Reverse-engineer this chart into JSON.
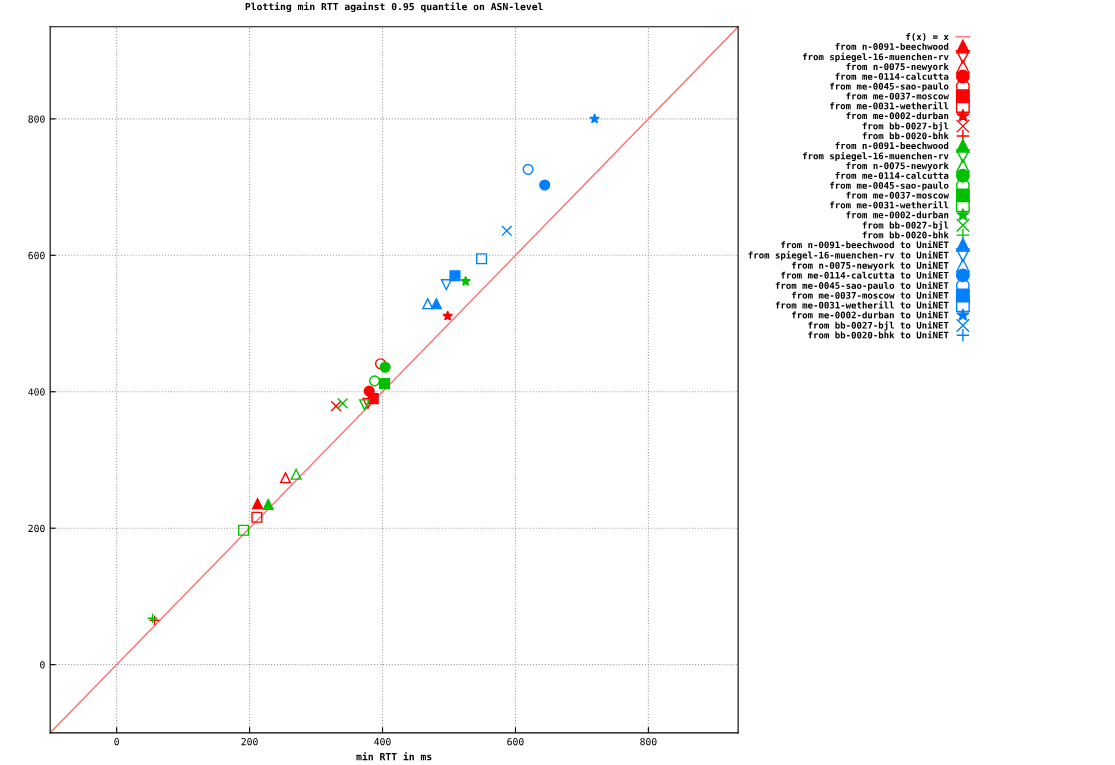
{
  "chart_data": {
    "type": "scatter",
    "title": "Plotting min RTT against 0.95 quantile on ASN-level",
    "xlabel": "min RTT in ms",
    "xlim": [
      -100,
      935
    ],
    "ylim": [
      -100,
      935
    ],
    "xticks": [
      0,
      200,
      400,
      600,
      800
    ],
    "yticks": [
      0,
      200,
      400,
      600,
      800
    ],
    "grid": true,
    "legend": "right",
    "series": [
      {
        "name": "f(x) = x",
        "type": "line",
        "color": "#ff7070",
        "line_style": "solid",
        "marker": "none",
        "x": [
          -100,
          935
        ],
        "values": [
          -100,
          935
        ]
      },
      {
        "name": "from n-0091-beechwood",
        "color": "#ff0000",
        "marker": "triangle",
        "x": [
          212
        ],
        "values": [
          236
        ]
      },
      {
        "name": "from spiegel-16-muenchen-rv",
        "color": "#ff0000",
        "marker": "triangle-down-open",
        "x": [
          378
        ],
        "values": [
          383
        ]
      },
      {
        "name": "from n-0075-newyork",
        "color": "#ff0000",
        "marker": "triangle-open",
        "x": [
          254
        ],
        "values": [
          274
        ]
      },
      {
        "name": "from me-0114-calcutta",
        "color": "#ff0000",
        "marker": "circle",
        "x": [
          380
        ],
        "values": [
          401
        ]
      },
      {
        "name": "from me-0045-sao-paulo",
        "color": "#ff0000",
        "marker": "circle-open",
        "x": [
          397
        ],
        "values": [
          441
        ]
      },
      {
        "name": "from me-0037-moscow",
        "color": "#ff0000",
        "marker": "square",
        "x": [
          386
        ],
        "values": [
          390
        ]
      },
      {
        "name": "from me-0031-wetherill",
        "color": "#ff0000",
        "marker": "square-open",
        "x": [
          211
        ],
        "values": [
          216
        ]
      },
      {
        "name": "from me-0002-durban",
        "color": "#ff0000",
        "marker": "star",
        "x": [
          498
        ],
        "values": [
          511
        ]
      },
      {
        "name": "from bb-0027-bjl",
        "color": "#ff0000",
        "marker": "cross",
        "x": [
          330
        ],
        "values": [
          379
        ]
      },
      {
        "name": "from bb-0020-bhk",
        "color": "#ff0000",
        "marker": "plus",
        "x": [
          57
        ],
        "values": [
          65
        ]
      },
      {
        "name": "from n-0091-beechwood",
        "color": "#00c000",
        "marker": "triangle",
        "x": [
          228
        ],
        "values": [
          235
        ]
      },
      {
        "name": "from spiegel-16-muenchen-rv",
        "color": "#00c000",
        "marker": "triangle-down-open",
        "x": [
          373
        ],
        "values": [
          381
        ]
      },
      {
        "name": "from n-0075-newyork",
        "color": "#00c000",
        "marker": "triangle-open",
        "x": [
          270
        ],
        "values": [
          279
        ]
      },
      {
        "name": "from me-0114-calcutta",
        "color": "#00c000",
        "marker": "circle",
        "x": [
          404
        ],
        "values": [
          436
        ]
      },
      {
        "name": "from me-0045-sao-paulo",
        "color": "#00c000",
        "marker": "circle-open",
        "x": [
          388
        ],
        "values": [
          416
        ]
      },
      {
        "name": "from me-0037-moscow",
        "color": "#00c000",
        "marker": "square",
        "x": [
          403
        ],
        "values": [
          412
        ]
      },
      {
        "name": "from me-0031-wetherill",
        "color": "#00c000",
        "marker": "square-open",
        "x": [
          191
        ],
        "values": [
          197
        ]
      },
      {
        "name": "from me-0002-durban",
        "color": "#00c000",
        "marker": "star",
        "x": [
          525
        ],
        "values": [
          562
        ]
      },
      {
        "name": "from bb-0027-bjl",
        "color": "#00c000",
        "marker": "cross",
        "x": [
          340
        ],
        "values": [
          383
        ]
      },
      {
        "name": "from bb-0020-bhk",
        "color": "#00c000",
        "marker": "plus",
        "x": [
          54
        ],
        "values": [
          68
        ]
      },
      {
        "name": "from n-0091-beechwood to UniNET",
        "color": "#0080ff",
        "marker": "triangle",
        "x": [
          481
        ],
        "values": [
          529
        ]
      },
      {
        "name": "from spiegel-16-muenchen-rv to UniNET",
        "color": "#0080ff",
        "marker": "triangle-down-open",
        "x": [
          496
        ],
        "values": [
          557
        ]
      },
      {
        "name": "from n-0075-newyork to UniNET",
        "color": "#0080ff",
        "marker": "triangle-open",
        "x": [
          468
        ],
        "values": [
          529
        ]
      },
      {
        "name": "from me-0114-calcutta to UniNET",
        "color": "#0080ff",
        "marker": "circle",
        "x": [
          644
        ],
        "values": [
          703
        ]
      },
      {
        "name": "from me-0045-sao-paulo to UniNET",
        "color": "#0080ff",
        "marker": "circle-open",
        "x": [
          619
        ],
        "values": [
          726
        ]
      },
      {
        "name": "from me-0037-moscow to UniNET",
        "color": "#0080ff",
        "marker": "square",
        "x": [
          509
        ],
        "values": [
          570
        ]
      },
      {
        "name": "from me-0031-wetherill to UniNET",
        "color": "#0080ff",
        "marker": "square-open",
        "x": [
          549
        ],
        "values": [
          595
        ]
      },
      {
        "name": "from me-0002-durban to UniNET",
        "color": "#0080ff",
        "marker": "star",
        "x": [
          719
        ],
        "values": [
          800
        ]
      },
      {
        "name": "from bb-0027-bjl to UniNET",
        "color": "#0080ff",
        "marker": "cross",
        "x": [
          587
        ],
        "values": [
          636
        ]
      },
      {
        "name": "from bb-0020-bhk to UniNET",
        "color": "#0080ff",
        "marker": "plus",
        "x": [
          null
        ],
        "values": [
          null
        ]
      }
    ]
  }
}
